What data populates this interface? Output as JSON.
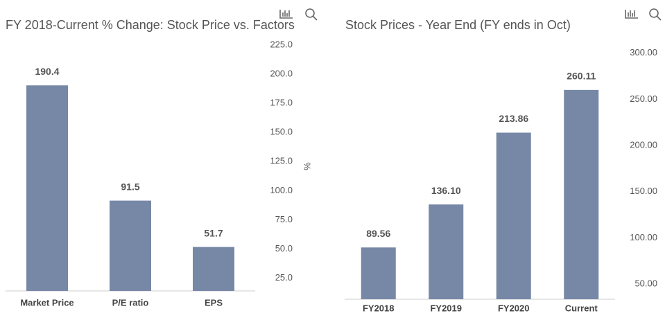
{
  "chart_data": [
    {
      "type": "bar",
      "title": "FY 2018-Current % Change: Stock Price vs. Factors",
      "categories": [
        "Market Price",
        "P/E ratio",
        "EPS"
      ],
      "values": [
        190.4,
        91.5,
        51.7
      ],
      "color": "#7788a6",
      "ylim": [
        14,
        228
      ],
      "y_axis_label": "%",
      "y_axis_side": "right",
      "grid": false,
      "yticks": [
        {
          "value": 25,
          "label": "25.0"
        },
        {
          "value": 50,
          "label": "50.0"
        },
        {
          "value": 75,
          "label": "75.0"
        },
        {
          "value": 100,
          "label": "100.0"
        },
        {
          "value": 125,
          "label": "125.0"
        },
        {
          "value": 150,
          "label": "150.0"
        },
        {
          "value": 175,
          "label": "175.0"
        },
        {
          "value": 200,
          "label": "200.0"
        },
        {
          "value": 225,
          "label": "225.0"
        }
      ]
    },
    {
      "type": "bar",
      "title": "Stock Prices - Year End (FY ends in Oct)",
      "categories": [
        "FY2018",
        "FY2019",
        "FY2020",
        "Current"
      ],
      "values": [
        89.56,
        136.1,
        213.86,
        260.11
      ],
      "value_labels": [
        "89.56",
        "136.10",
        "213.86",
        "260.11"
      ],
      "color": "#7788a6",
      "ylim": [
        33.5,
        305
      ],
      "y_axis_side": "right",
      "grid": false,
      "yticks": [
        {
          "value": 50,
          "label": "50.00"
        },
        {
          "value": 100,
          "label": "100.00"
        },
        {
          "value": 150,
          "label": "150.00"
        },
        {
          "value": 200,
          "label": "200.00"
        },
        {
          "value": 250,
          "label": "250.00"
        },
        {
          "value": 300,
          "label": "300.00"
        }
      ]
    }
  ]
}
